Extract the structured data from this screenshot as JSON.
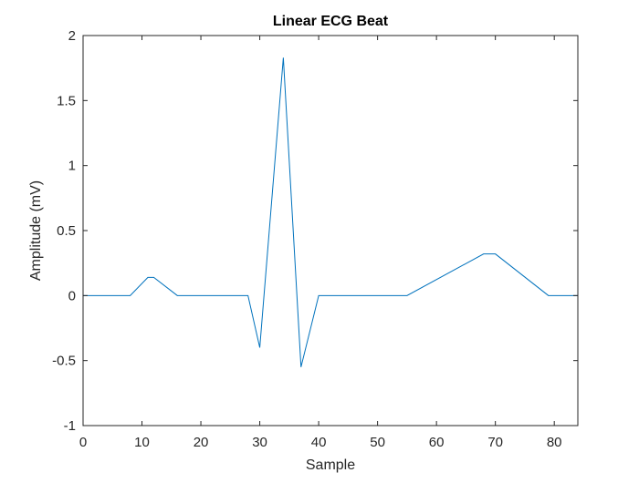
{
  "chart_data": {
    "type": "line",
    "title": "Linear ECG Beat",
    "xlabel": "Sample",
    "ylabel": "Amplitude (mV)",
    "xlim": [
      0,
      84
    ],
    "ylim": [
      -1,
      2
    ],
    "xticks": [
      0,
      10,
      20,
      30,
      40,
      50,
      60,
      70,
      80
    ],
    "yticks": [
      -1,
      -0.5,
      0,
      0.5,
      1,
      1.5,
      2
    ],
    "grid": false,
    "box": true,
    "line_color": "#0072BD",
    "series": [
      {
        "x": [
          0,
          8,
          11,
          12,
          16,
          28,
          30,
          34,
          37,
          40,
          55,
          68,
          70,
          79,
          84
        ],
        "values": [
          0,
          0,
          0.14,
          0.14,
          0,
          0,
          -0.4,
          1.83,
          -0.55,
          0,
          0,
          0.32,
          0.32,
          0,
          0
        ]
      }
    ]
  }
}
